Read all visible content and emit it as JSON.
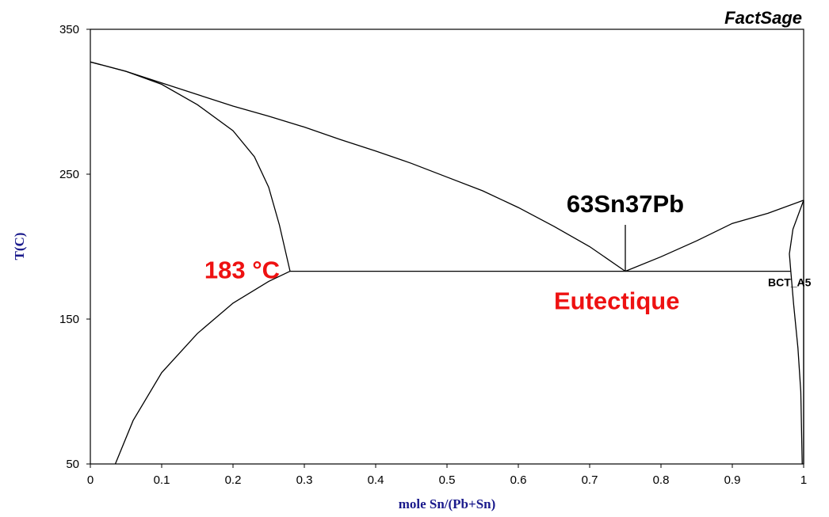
{
  "chart_data": {
    "type": "line",
    "brand": "FactSage",
    "xlabel": "mole Sn/(Pb+Sn)",
    "ylabel": "T(C)",
    "xlim": [
      0,
      1
    ],
    "ylim": [
      50,
      350
    ],
    "xticks": [
      0,
      0.1,
      0.2,
      0.3,
      0.4,
      0.5,
      0.6,
      0.7,
      0.8,
      0.9,
      1
    ],
    "xtick_labels": [
      "0",
      "0.1",
      "0.2",
      "0.3",
      "0.4",
      "0.5",
      "0.6",
      "0.7",
      "0.8",
      "0.9",
      "1"
    ],
    "yticks": [
      50,
      150,
      250,
      350
    ],
    "ytick_labels": [
      "50",
      "150",
      "250",
      "350"
    ],
    "grid": false,
    "series": [
      {
        "x": [
          0,
          0.05,
          0.1,
          0.15,
          0.2,
          0.25,
          0.3,
          0.35,
          0.4,
          0.45,
          0.5,
          0.55,
          0.6,
          0.65,
          0.7,
          0.75
        ],
        "y": [
          327.5,
          321,
          313,
          305,
          297,
          290,
          282.5,
          274,
          266,
          257.5,
          248,
          238.5,
          227,
          214,
          200,
          183
        ]
      },
      {
        "x": [
          0.75,
          0.8,
          0.85,
          0.9,
          0.95,
          1.0
        ],
        "y": [
          183,
          193,
          204,
          216,
          223,
          232
        ]
      },
      {
        "x": [
          0,
          0.05,
          0.1,
          0.15,
          0.2,
          0.23,
          0.25,
          0.265,
          0.28
        ],
        "y": [
          327.5,
          321,
          312,
          298,
          280,
          262,
          241,
          215,
          183
        ]
      },
      {
        "x": [
          0.035,
          0.06,
          0.1,
          0.15,
          0.2,
          0.25,
          0.28
        ],
        "y": [
          50,
          80,
          113,
          140,
          161,
          176,
          183
        ]
      },
      {
        "x": [
          0.28,
          0.982
        ],
        "y": [
          183,
          183
        ]
      },
      {
        "x": [
          1.0,
          0.985,
          0.98,
          0.982
        ],
        "y": [
          232,
          212,
          195,
          183
        ]
      },
      {
        "x": [
          0.982,
          0.986,
          0.992,
          0.996,
          0.998
        ],
        "y": [
          183,
          160,
          130,
          100,
          50
        ]
      },
      {
        "x": [
          1.0,
          1.0
        ],
        "y": [
          232,
          50
        ]
      },
      {
        "x": [
          0.75,
          0.75
        ],
        "y": [
          183,
          215
        ]
      }
    ],
    "annotations": [
      {
        "text": "63Sn37Pb",
        "x": 0.75,
        "y": 220,
        "color": "#000000"
      },
      {
        "text": "183 °C",
        "x": 0.27,
        "y": 183,
        "color": "#ee1111"
      },
      {
        "text": "Eutectique",
        "x": 0.65,
        "y": 170,
        "color": "#ee1111"
      },
      {
        "text": "BCT_A5",
        "x": 0.95,
        "y": 176,
        "color": "#000000"
      }
    ]
  }
}
